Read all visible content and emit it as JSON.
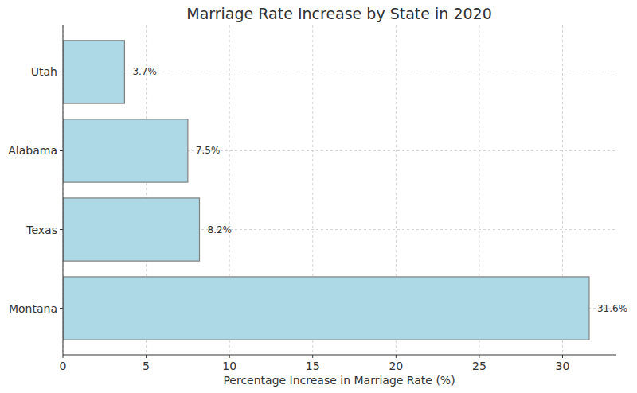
{
  "chart_data": {
    "type": "bar",
    "orientation": "horizontal",
    "title": "Marriage Rate Increase by State in 2020",
    "x_label": "Percentage Increase in Marriage Rate (%)",
    "categories": [
      "Montana",
      "Texas",
      "Alabama",
      "Utah"
    ],
    "values": [
      31.6,
      8.2,
      7.5,
      3.7
    ],
    "value_labels": [
      "31.6%",
      "8.2%",
      "7.5%",
      "3.7%"
    ],
    "data_labels": true,
    "color": "#add8e6",
    "xlim": [
      0,
      33.18
    ],
    "xticks": [
      0,
      5,
      10,
      15,
      20,
      25,
      30
    ],
    "grid": true
  }
}
